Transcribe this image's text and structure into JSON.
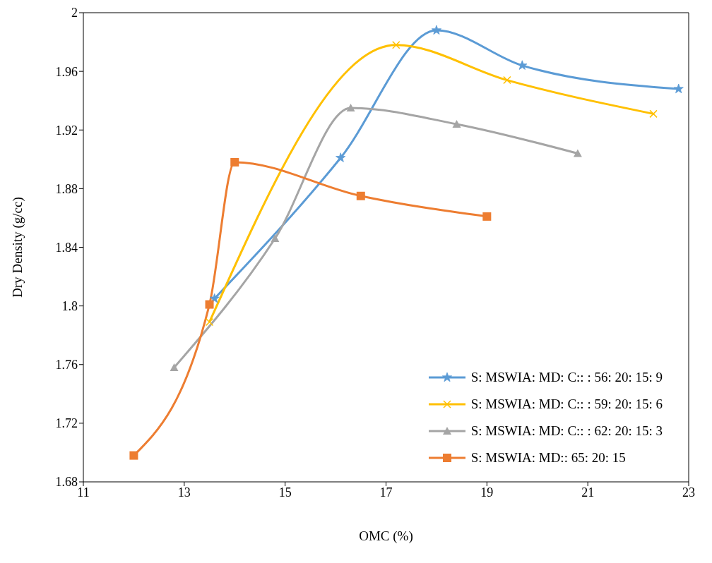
{
  "chart_data": {
    "type": "line",
    "xlabel": "OMC (%)",
    "ylabel": "Dry Density (g/cc)",
    "xlim": [
      11,
      23
    ],
    "xticks": [
      11,
      13,
      15,
      17,
      19,
      21,
      23
    ],
    "ylim": [
      1.68,
      2
    ],
    "yticks": [
      1.68,
      1.72,
      1.76,
      1.8,
      1.84,
      1.88,
      1.92,
      1.96,
      2
    ],
    "legend": "bottom right",
    "series": [
      {
        "name": "S: MSWIA: MD: C:: : 56: 20: 15: 9",
        "color": "#5b9bd5",
        "marker": "star",
        "x": [
          13.6,
          16.1,
          18.0,
          19.7,
          22.8
        ],
        "values": [
          1.805,
          1.901,
          1.988,
          1.964,
          1.948
        ]
      },
      {
        "name": "S: MSWIA: MD: C:: : 59: 20: 15: 6",
        "color": "#ffc000",
        "marker": "cross",
        "x": [
          13.5,
          17.2,
          19.4,
          22.3
        ],
        "values": [
          1.789,
          1.978,
          1.954,
          1.931
        ]
      },
      {
        "name": "S: MSWIA: MD: C:: : 62: 20: 15: 3",
        "color": "#a5a5a5",
        "marker": "triangle",
        "x": [
          12.8,
          14.8,
          16.3,
          18.4,
          20.8
        ],
        "values": [
          1.758,
          1.846,
          1.935,
          1.924,
          1.904
        ]
      },
      {
        "name": "S: MSWIA: MD:: 65: 20: 15",
        "color": "#ed7d31",
        "marker": "square",
        "x": [
          12.0,
          13.5,
          14.0,
          16.5,
          19.0
        ],
        "values": [
          1.698,
          1.801,
          1.898,
          1.875,
          1.861
        ]
      }
    ]
  }
}
